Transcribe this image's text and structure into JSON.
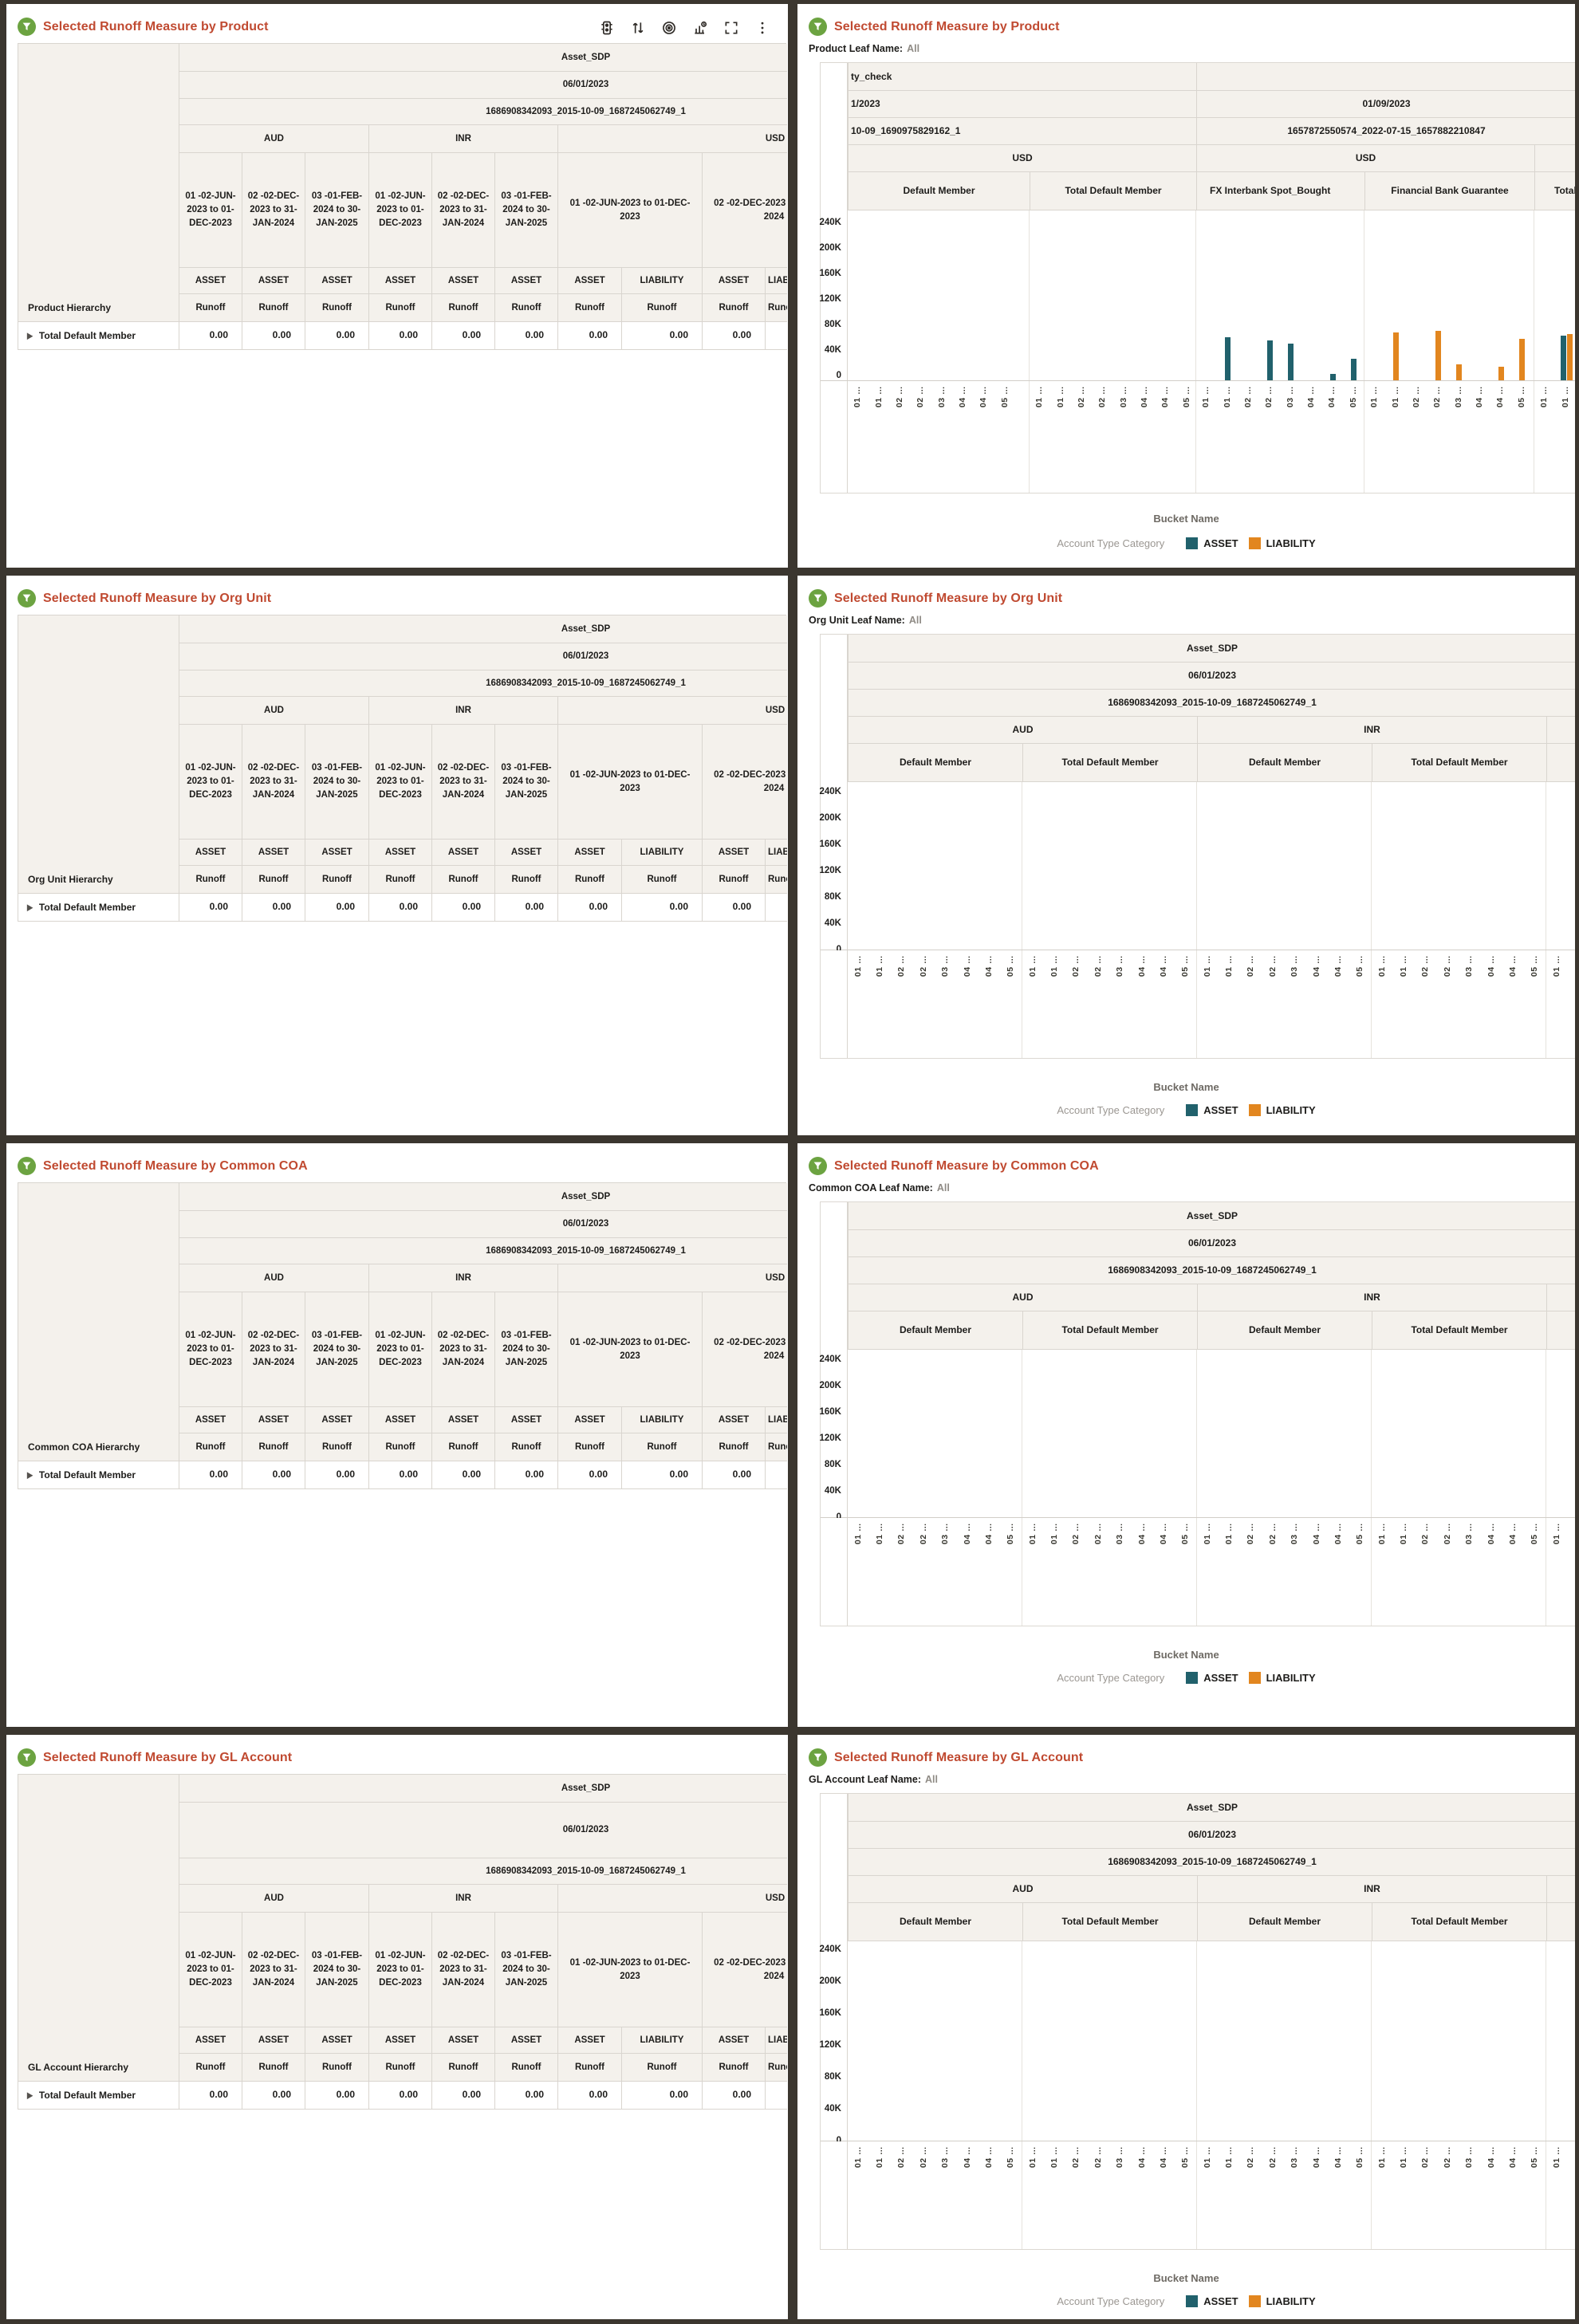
{
  "colors": {
    "title_accent": "#c04a31",
    "asset": "#21616c",
    "liability": "#e2861f",
    "header_bg": "#f4f1ec",
    "frame_bg": "#3b362f",
    "icon_green": "#6ca341"
  },
  "glyphs": {
    "expand": "▶"
  },
  "toolbar": {
    "icons": [
      "traffic-light-icon",
      "sort-icon",
      "target-icon",
      "chart-history-icon",
      "maximize-icon",
      "kebab-menu-icon"
    ]
  },
  "table_common": {
    "scenario": "Asset_SDP",
    "as_of_date": "06/01/2023",
    "run_id": "1686908342093_2015-10-09_1687245062749_1",
    "currency_aud": "AUD",
    "currency_inr": "INR",
    "currency_usd": "USD",
    "bucket_1": "01 -02-JUN-2023 to 01-DEC-2023",
    "bucket_2": "02 -02-DEC-2023 to 31-JAN-2024",
    "bucket_3": "03 -01-FEB-2024 to 30-JAN-2025",
    "acct_asset": "ASSET",
    "acct_liability": "LIABILITY",
    "measure": "Runoff",
    "row_value": "0.00",
    "total_member": "Total Default Member"
  },
  "left_panels": [
    {
      "title": "Selected Runoff Measure by Product",
      "hierarchy_label": "Product Hierarchy"
    },
    {
      "title": "Selected Runoff Measure by Org Unit",
      "hierarchy_label": "Org Unit Hierarchy"
    },
    {
      "title": "Selected Runoff Measure by Common COA",
      "hierarchy_label": "Common COA Hierarchy"
    },
    {
      "title": "Selected Runoff Measure by GL Account",
      "hierarchy_label": "GL Account Hierarchy"
    }
  ],
  "right_panels": [
    {
      "title": "Selected Runoff Measure by Product",
      "leaf_label": "Product Leaf Name:",
      "leaf_value": "All"
    },
    {
      "title": "Selected Runoff Measure by Org Unit",
      "leaf_label": "Org Unit Leaf Name:",
      "leaf_value": "All"
    },
    {
      "title": "Selected Runoff Measure by Common COA",
      "leaf_label": "Common COA Leaf Name:",
      "leaf_value": "All"
    },
    {
      "title": "Selected Runoff Measure by GL Account",
      "leaf_label": "GL Account Leaf Name:",
      "leaf_value": "All"
    }
  ],
  "standard_chart": {
    "col_default": "Default Member",
    "col_total": "Total Default Member"
  },
  "product_chart": {
    "group1": {
      "scenario": "ty_check",
      "date": "1/2023",
      "run_id": "10-09_1690975829162_1",
      "currency": "USD",
      "col1": "Default Member",
      "col2": "Total Default Member"
    },
    "group2": {
      "scenario": "",
      "date": "01/09/2023",
      "run_id": "1657872550574_2022-07-15_1657882210847",
      "currency": "USD",
      "col1": "FX Interbank Spot_Bought",
      "col2": "Financial Bank Guarantee",
      "col3": "Total"
    },
    "fx_bars": {
      "slots": [
        1,
        3,
        4,
        6,
        7
      ],
      "values": [
        68000,
        63000,
        58000,
        10000,
        34000
      ]
    },
    "fbg_bars": {
      "slots": [
        1,
        3,
        4,
        6,
        7
      ],
      "values": [
        75000,
        77000,
        25000,
        21000,
        65000
      ]
    },
    "total_bars": {
      "asset": 70000,
      "liability": 73000
    }
  },
  "chart_axis": {
    "y_ticks": [
      "240K",
      "200K",
      "160K",
      "120K",
      "80K",
      "40K",
      "0"
    ],
    "ymax": 240000,
    "x_title": "Bucket Name",
    "x_tick_labels": [
      "01 …",
      "01 …",
      "02 …",
      "02 …",
      "03 …",
      "04 …",
      "04 …",
      "05 …"
    ],
    "x_tick_labels_partial": [
      "01 …",
      "01 …"
    ]
  },
  "legend": {
    "title": "Account Type Category",
    "asset": "ASSET",
    "liability": "LIABILITY"
  },
  "chart_data": [
    {
      "panel": "Selected Runoff Measure by Product",
      "type": "bar",
      "xlabel": "Bucket Name",
      "ylim": [
        0,
        240000
      ],
      "y_tick_labels": [
        "240K",
        "200K",
        "160K",
        "120K",
        "80K",
        "40K",
        "0"
      ],
      "legend_title": "Account Type Category",
      "legend": [
        "ASSET",
        "LIABILITY"
      ],
      "legend_position": "bottom",
      "grid": false,
      "trellis_columns": [
        {
          "group": "ty_check | 1/2023 | 10-09_1690975829162_1 | USD",
          "name": "Default Member",
          "series": [],
          "values": []
        },
        {
          "group": "ty_check | 1/2023 | 10-09_1690975829162_1 | USD",
          "name": "Total Default Member",
          "series": [],
          "values": []
        },
        {
          "group": "01/09/2023 | 1657872550574_2022-07-15_1657882210847 | USD",
          "name": "FX Interbank Spot_Bought",
          "series": "ASSET",
          "categories": [
            "01",
            "02",
            "03",
            "04",
            "05"
          ],
          "values": [
            68000,
            63000,
            58000,
            10000,
            34000
          ]
        },
        {
          "group": "01/09/2023 | 1657872550574_2022-07-15_1657882210847 | USD",
          "name": "Financial Bank Guarantee",
          "series": "LIABILITY",
          "categories": [
            "01",
            "02",
            "03",
            "04",
            "05"
          ],
          "values": [
            75000,
            77000,
            25000,
            21000,
            65000
          ]
        },
        {
          "group": "01/09/2023 | 1657872550574_2022-07-15_1657882210847 | USD",
          "name": "Total (partially visible)",
          "series": [
            "ASSET",
            "LIABILITY"
          ],
          "categories": [
            "01"
          ],
          "values_asset": [
            70000
          ],
          "values_liability": [
            73000
          ]
        }
      ]
    },
    {
      "panel": "Selected Runoff Measure by Org Unit",
      "type": "bar",
      "xlabel": "Bucket Name",
      "ylim": [
        0,
        240000
      ],
      "y_tick_labels": [
        "240K",
        "200K",
        "160K",
        "120K",
        "80K",
        "40K",
        "0"
      ],
      "legend": [
        "ASSET",
        "LIABILITY"
      ],
      "trellis_columns": [
        {
          "group": "Asset_SDP | 06/01/2023 | 1686908342093_2015-10-09_1687245062749_1 | AUD",
          "name": "Default Member",
          "values": []
        },
        {
          "group": "AUD",
          "name": "Total Default Member",
          "values": []
        },
        {
          "group": "INR",
          "name": "Default Member",
          "values": []
        },
        {
          "group": "INR",
          "name": "Total Default Member",
          "values": []
        }
      ]
    },
    {
      "panel": "Selected Runoff Measure by Common COA",
      "type": "bar",
      "xlabel": "Bucket Name",
      "ylim": [
        0,
        240000
      ],
      "y_tick_labels": [
        "240K",
        "200K",
        "160K",
        "120K",
        "80K",
        "40K",
        "0"
      ],
      "legend": [
        "ASSET",
        "LIABILITY"
      ],
      "trellis_columns": [
        {
          "group": "Asset_SDP | 06/01/2023 | 1686908342093_2015-10-09_1687245062749_1 | AUD",
          "name": "Default Member",
          "values": []
        },
        {
          "group": "AUD",
          "name": "Total Default Member",
          "values": []
        },
        {
          "group": "INR",
          "name": "Default Member",
          "values": []
        },
        {
          "group": "INR",
          "name": "Total Default Member",
          "values": []
        }
      ]
    },
    {
      "panel": "Selected Runoff Measure by GL Account",
      "type": "bar",
      "xlabel": "Bucket Name",
      "ylim": [
        0,
        240000
      ],
      "y_tick_labels": [
        "240K",
        "200K",
        "160K",
        "120K",
        "80K",
        "40K",
        "0"
      ],
      "legend": [
        "ASSET",
        "LIABILITY"
      ],
      "trellis_columns": [
        {
          "group": "Asset_SDP | 06/01/2023 | 1686908342093_2015-10-09_1687245062749_1 | AUD",
          "name": "Default Member",
          "values": []
        },
        {
          "group": "AUD",
          "name": "Total Default Member",
          "values": []
        },
        {
          "group": "INR",
          "name": "Default Member",
          "values": []
        },
        {
          "group": "INR",
          "name": "Total Default Member",
          "values": []
        }
      ]
    }
  ]
}
